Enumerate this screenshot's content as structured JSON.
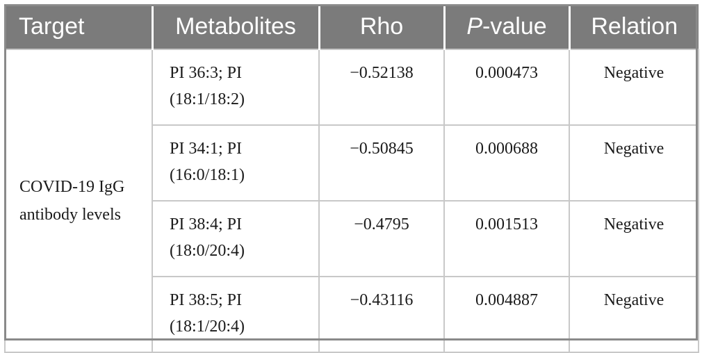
{
  "header": {
    "target": "Target",
    "metabolites": "Metabolites",
    "rho": "Rho",
    "p_prefix": "P",
    "p_suffix": "-value",
    "relation": "Relation"
  },
  "target_label": "COVID-19 IgG antibody levels",
  "rows": [
    {
      "metabolite_line1": "PI 36:3; PI",
      "metabolite_line2": "(18:1/18:2)",
      "rho": "−0.52138",
      "p_value": "0.000473",
      "relation": "Negative"
    },
    {
      "metabolite_line1": "PI 34:1; PI",
      "metabolite_line2": "(16:0/18:1)",
      "rho": "−0.50845",
      "p_value": "0.000688",
      "relation": "Negative"
    },
    {
      "metabolite_line1": "PI 38:4; PI",
      "metabolite_line2": "(18:0/20:4)",
      "rho": "−0.4795",
      "p_value": "0.001513",
      "relation": "Negative"
    },
    {
      "metabolite_line1": "PI 38:5; PI",
      "metabolite_line2": "(18:1/20:4)",
      "rho": "−0.43116",
      "p_value": "0.004887",
      "relation": "Negative"
    }
  ]
}
